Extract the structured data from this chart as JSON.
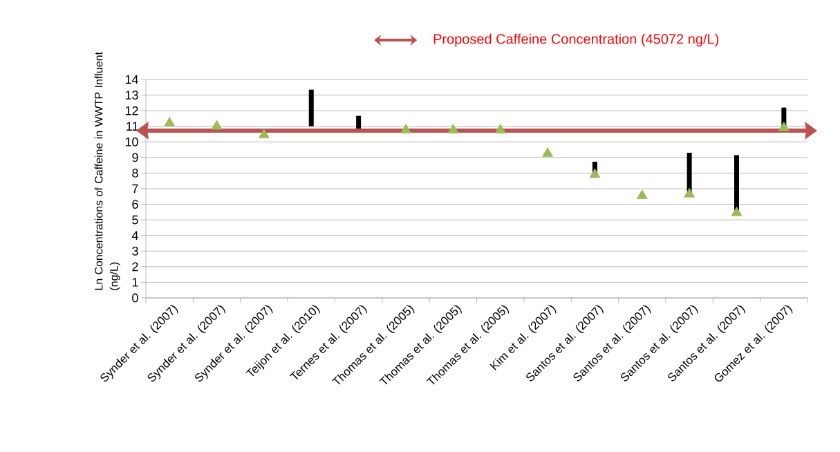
{
  "chart_data": {
    "type": "bar",
    "ylabel": "Ln Concentrations of Caffeine  in WWTP Influent (ng/L)",
    "categories": [
      "Synder et al. (2007)",
      "Synder et al. (2007)",
      "Synder et al. (2007)",
      "Teijon et al. (2010)",
      "Ternes et al. (2007)",
      "Thomas et al. (2005)",
      "Thomas et al. (2005)",
      "Thomas et al. (2005)",
      "Kim et al. (2007)",
      "Santos et al. (2007)",
      "Santos et al. (2007)",
      "Santos et al. (2007)",
      "Santos et al. (2007)",
      "Gomez et al. (2007)"
    ],
    "series": [
      {
        "type": "bar",
        "color": "#000000",
        "base": [
          null,
          null,
          null,
          11.0,
          10.85,
          null,
          null,
          null,
          null,
          7.9,
          null,
          6.65,
          5.45,
          10.9
        ],
        "values": [
          null,
          null,
          null,
          2.35,
          0.82,
          null,
          null,
          null,
          null,
          0.83,
          null,
          2.65,
          3.7,
          1.3
        ]
      },
      {
        "type": "scatter",
        "color": "#9bbb59",
        "marker": "triangle",
        "values": [
          11.2,
          11.0,
          10.45,
          null,
          null,
          10.75,
          10.75,
          10.75,
          9.25,
          7.9,
          6.55,
          6.65,
          5.45,
          10.9
        ]
      }
    ],
    "ylim": [
      0,
      14
    ],
    "yticks": [
      0,
      1,
      2,
      3,
      4,
      5,
      6,
      7,
      8,
      9,
      10,
      11,
      12,
      13,
      14
    ],
    "grid": "y",
    "ref_lines": [
      {
        "axis": "y",
        "value": 10.72,
        "label": "Proposed Caffeine Concentration (45072 ng/L)",
        "color": "#c0504d"
      }
    ]
  }
}
